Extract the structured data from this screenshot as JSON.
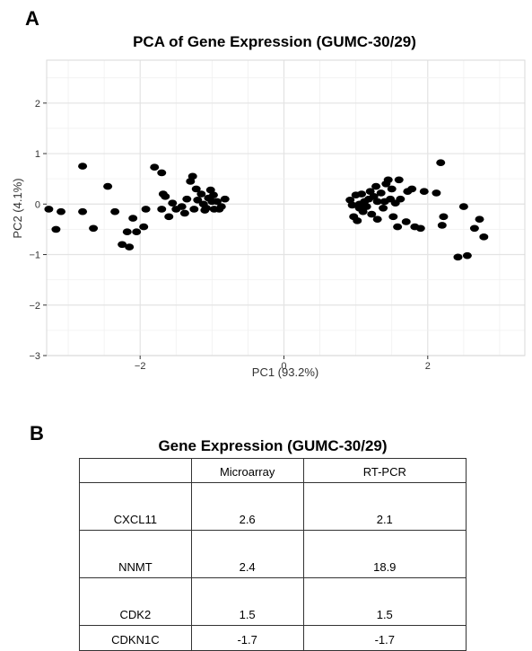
{
  "panels": {
    "a_letter": "A",
    "b_letter": "B"
  },
  "chart_data": {
    "type": "scatter",
    "title": "PCA of Gene Expression (GUMC-30/29)",
    "xlabel": "PC1 (93.2%)",
    "ylabel": "PC2 (4.1%)",
    "xlim": [
      -3.3,
      3.35
    ],
    "ylim": [
      -3,
      2.85
    ],
    "xticks": [
      -2,
      0,
      2
    ],
    "xtick_labels": [
      "−2",
      "0",
      "2"
    ],
    "yticks": [
      -3,
      -2,
      -1,
      0,
      1,
      2
    ],
    "ytick_labels": [
      "−3",
      "−2",
      "−1",
      "0",
      "1",
      "2"
    ],
    "grid": true,
    "legend": "none",
    "points": [
      [
        -3.27,
        -0.1
      ],
      [
        -3.1,
        -0.15
      ],
      [
        -3.17,
        -0.5
      ],
      [
        -2.8,
        0.75
      ],
      [
        -2.8,
        -0.15
      ],
      [
        -2.65,
        -0.48
      ],
      [
        -2.45,
        0.35
      ],
      [
        -2.35,
        -0.15
      ],
      [
        -2.25,
        -0.8
      ],
      [
        -2.15,
        -0.85
      ],
      [
        -2.18,
        -0.55
      ],
      [
        -2.05,
        -0.55
      ],
      [
        -2.1,
        -0.28
      ],
      [
        -1.95,
        -0.45
      ],
      [
        -1.92,
        -0.1
      ],
      [
        -1.8,
        0.73
      ],
      [
        -1.7,
        0.62
      ],
      [
        -1.68,
        0.2
      ],
      [
        -1.65,
        0.15
      ],
      [
        -1.7,
        -0.1
      ],
      [
        -1.6,
        -0.25
      ],
      [
        -1.55,
        0.02
      ],
      [
        -1.5,
        -0.1
      ],
      [
        -1.42,
        -0.05
      ],
      [
        -1.35,
        0.1
      ],
      [
        -1.3,
        0.45
      ],
      [
        -1.27,
        0.55
      ],
      [
        -1.22,
        0.3
      ],
      [
        -1.2,
        0.08
      ],
      [
        -1.15,
        0.2
      ],
      [
        -1.12,
        0.0
      ],
      [
        -1.08,
        -0.08
      ],
      [
        -1.05,
        0.12
      ],
      [
        -1.02,
        0.28
      ],
      [
        -0.98,
        0.18
      ],
      [
        -0.97,
        -0.1
      ],
      [
        -0.93,
        0.05
      ],
      [
        -0.9,
        -0.1
      ],
      [
        -0.87,
        -0.05
      ],
      [
        -0.82,
        0.1
      ],
      [
        -1.25,
        -0.1
      ],
      [
        -1.0,
        0.05
      ],
      [
        -1.38,
        -0.18
      ],
      [
        -1.1,
        -0.12
      ],
      [
        0.92,
        0.08
      ],
      [
        0.95,
        -0.02
      ],
      [
        0.97,
        -0.25
      ],
      [
        1.0,
        0.18
      ],
      [
        1.02,
        -0.33
      ],
      [
        1.05,
        0.0
      ],
      [
        1.05,
        -0.08
      ],
      [
        1.08,
        0.2
      ],
      [
        1.1,
        -0.15
      ],
      [
        1.12,
        0.05
      ],
      [
        1.15,
        -0.05
      ],
      [
        1.18,
        0.1
      ],
      [
        1.2,
        0.25
      ],
      [
        1.22,
        -0.2
      ],
      [
        1.25,
        0.15
      ],
      [
        1.28,
        0.35
      ],
      [
        1.3,
        -0.3
      ],
      [
        1.35,
        0.22
      ],
      [
        1.38,
        -0.08
      ],
      [
        1.4,
        0.05
      ],
      [
        1.42,
        0.4
      ],
      [
        1.45,
        0.48
      ],
      [
        1.48,
        0.1
      ],
      [
        1.5,
        0.3
      ],
      [
        1.52,
        -0.25
      ],
      [
        1.55,
        0.02
      ],
      [
        1.6,
        0.48
      ],
      [
        1.62,
        0.1
      ],
      [
        1.7,
        -0.35
      ],
      [
        1.72,
        0.25
      ],
      [
        1.78,
        0.3
      ],
      [
        1.82,
        -0.45
      ],
      [
        1.9,
        -0.48
      ],
      [
        1.95,
        0.25
      ],
      [
        2.12,
        0.22
      ],
      [
        2.18,
        0.82
      ],
      [
        2.2,
        -0.42
      ],
      [
        2.22,
        -0.25
      ],
      [
        2.42,
        -1.05
      ],
      [
        2.5,
        -0.05
      ],
      [
        2.55,
        -1.02
      ],
      [
        2.65,
        -0.48
      ],
      [
        2.72,
        -0.3
      ],
      [
        2.78,
        -0.65
      ],
      [
        1.58,
        -0.45
      ],
      [
        1.3,
        0.05
      ]
    ]
  },
  "table": {
    "title": "Gene Expression (GUMC-30/29)",
    "headers": [
      "",
      "Microarray",
      "RT-PCR"
    ],
    "rows": [
      {
        "gene": "CXCL11",
        "microarray": "2.6",
        "rtpcr": "2.1"
      },
      {
        "gene": "NNMT",
        "microarray": "2.4",
        "rtpcr": "18.9"
      },
      {
        "gene": "CDK2",
        "microarray": "1.5",
        "rtpcr": "1.5"
      },
      {
        "gene": "CDKN1C",
        "microarray": "-1.7",
        "rtpcr": "-1.7"
      }
    ]
  }
}
